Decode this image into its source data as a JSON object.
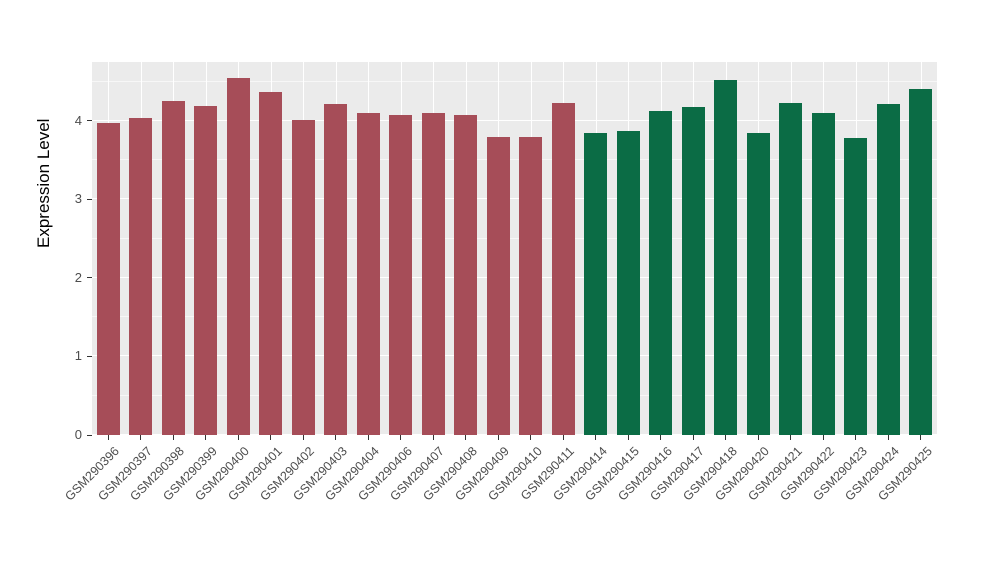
{
  "chart_data": {
    "type": "bar",
    "title": "",
    "xlabel": "",
    "ylabel": "Expression Level",
    "ylim": [
      0,
      4.75
    ],
    "yticks": [
      0,
      1,
      2,
      3,
      4
    ],
    "yticks_minor": [
      0.5,
      1.5,
      2.5,
      3.5,
      4.5
    ],
    "grid": "on",
    "legend_position": "none",
    "panel_background": "#EBEBEB",
    "grid_color": "#FFFFFF",
    "categories": [
      "GSM290396",
      "GSM290397",
      "GSM290398",
      "GSM290399",
      "GSM290400",
      "GSM290401",
      "GSM290402",
      "GSM290403",
      "GSM290404",
      "GSM290406",
      "GSM290407",
      "GSM290408",
      "GSM290409",
      "GSM290410",
      "GSM290411",
      "GSM290414",
      "GSM290415",
      "GSM290416",
      "GSM290417",
      "GSM290418",
      "GSM290420",
      "GSM290421",
      "GSM290422",
      "GSM290423",
      "GSM290424",
      "GSM290425"
    ],
    "values": [
      3.97,
      4.04,
      4.25,
      4.19,
      4.55,
      4.37,
      4.01,
      4.22,
      4.1,
      4.08,
      4.1,
      4.07,
      3.8,
      3.8,
      4.23,
      3.85,
      3.87,
      4.13,
      4.18,
      4.52,
      3.85,
      4.23,
      4.1,
      3.78,
      4.21,
      4.4
    ],
    "groups": [
      "group1",
      "group1",
      "group1",
      "group1",
      "group1",
      "group1",
      "group1",
      "group1",
      "group1",
      "group1",
      "group1",
      "group1",
      "group1",
      "group1",
      "group1",
      "group2",
      "group2",
      "group2",
      "group2",
      "group2",
      "group2",
      "group2",
      "group2",
      "group2",
      "group2",
      "group2"
    ],
    "palette": {
      "group1": "#A64D58",
      "group2": "#0B6C45"
    }
  }
}
